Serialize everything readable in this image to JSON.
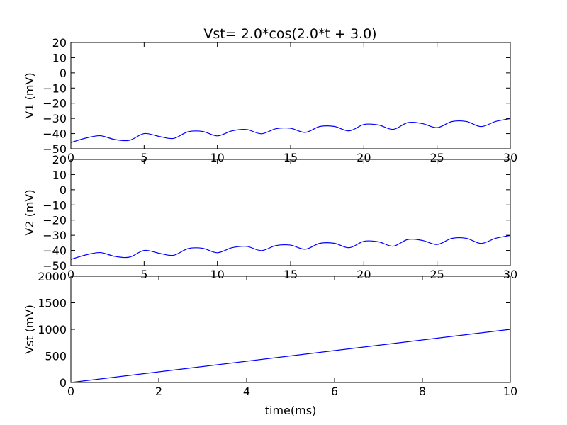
{
  "title": "Vst= 2.0*cos(2.0*t + 3.0)",
  "chart_data": [
    {
      "type": "line",
      "name": "v1-panel",
      "ylabel": "V1 (mV)",
      "xlabel": "",
      "xlim": [
        0,
        30
      ],
      "ylim": [
        -50,
        20
      ],
      "xticks": [
        0,
        5,
        10,
        15,
        20,
        25,
        30
      ],
      "yticks": [
        -50,
        -40,
        -30,
        -20,
        -10,
        0,
        10,
        20
      ],
      "color": "#0000ff",
      "series": [
        {
          "values_sampled_every_1ms": {
            "x": [
              0,
              1,
              2,
              3,
              4,
              5,
              6,
              7,
              8,
              9,
              10,
              11,
              12,
              13,
              14,
              15,
              16,
              17,
              18,
              19,
              20,
              21,
              22,
              23,
              24,
              25,
              26,
              27,
              28,
              29,
              30
            ],
            "y": [
              -45.9,
              -43.0,
              -41.4,
              -43.9,
              -44.4,
              -40.0,
              -41.8,
              -43.2,
              -38.8,
              -38.6,
              -41.5,
              -38.2,
              -37.3,
              -40.1,
              -36.8,
              -36.5,
              -39.2,
              -35.3,
              -35.3,
              -38.2,
              -34.0,
              -34.3,
              -37.2,
              -32.8,
              -33.4,
              -36.1,
              -32.1,
              -32.0,
              -35.4,
              -32.0,
              -30.1
            ]
          }
        }
      ]
    },
    {
      "type": "line",
      "name": "v2-panel",
      "ylabel": "V2 (mV)",
      "xlabel": "",
      "xlim": [
        0,
        30
      ],
      "ylim": [
        -50,
        20
      ],
      "xticks": [
        0,
        5,
        10,
        15,
        20,
        25,
        30
      ],
      "yticks": [
        -50,
        -40,
        -30,
        -20,
        -10,
        0,
        10,
        20
      ],
      "color": "#0000ff",
      "series": [
        {
          "values_sampled_every_1ms": {
            "x": [
              0,
              1,
              2,
              3,
              4,
              5,
              6,
              7,
              8,
              9,
              10,
              11,
              12,
              13,
              14,
              15,
              16,
              17,
              18,
              19,
              20,
              21,
              22,
              23,
              24,
              25,
              26,
              27,
              28,
              29,
              30
            ],
            "y": [
              -45.9,
              -43.0,
              -41.4,
              -43.9,
              -44.4,
              -40.0,
              -41.8,
              -43.2,
              -38.8,
              -38.6,
              -41.5,
              -38.2,
              -37.3,
              -40.1,
              -36.8,
              -36.5,
              -39.2,
              -35.3,
              -35.3,
              -38.2,
              -34.0,
              -34.3,
              -37.2,
              -32.8,
              -33.4,
              -36.1,
              -32.1,
              -32.0,
              -35.4,
              -32.0,
              -30.1
            ]
          }
        }
      ]
    },
    {
      "type": "line",
      "name": "vst-panel",
      "ylabel": "Vst (mV)",
      "xlabel": "time(ms)",
      "xlim": [
        0,
        10
      ],
      "ylim": [
        0,
        2000
      ],
      "xticks": [
        0,
        2,
        4,
        6,
        8,
        10
      ],
      "yticks": [
        0,
        500,
        1000,
        1500,
        2000
      ],
      "color": "#0000ff",
      "series": [
        {
          "x": [
            0,
            10
          ],
          "y": [
            0,
            1000
          ]
        }
      ]
    }
  ]
}
